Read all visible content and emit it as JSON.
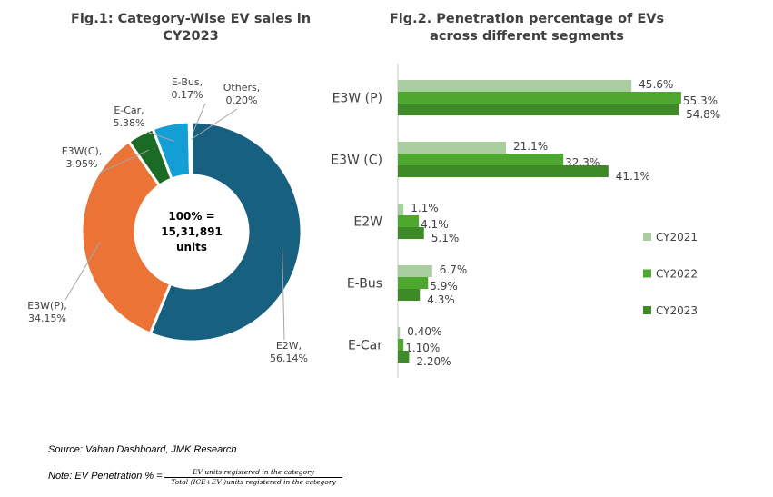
{
  "chart_data": [
    {
      "type": "pie",
      "title": "Fig.1: Category-Wise EV sales in CY2023",
      "center_label": [
        "100% =",
        "15,31,891",
        "units"
      ],
      "slices": [
        {
          "label": "E2W",
          "value": 56.14,
          "display": "56.14%",
          "color": "#17607f"
        },
        {
          "label": "E3W(P)",
          "value": 34.15,
          "display": "34.15%",
          "color": "#ea7335"
        },
        {
          "label": "E3W(C)",
          "value": 3.95,
          "display": "3.95%",
          "color": "#1b6b26"
        },
        {
          "label": "E-Car",
          "value": 5.38,
          "display": "5.38%",
          "color": "#139fd6"
        },
        {
          "label": "E-Bus",
          "value": 0.17,
          "display": "0.17%",
          "color": "#7f7f7f"
        },
        {
          "label": "Others",
          "value": 0.2,
          "display": "0.20%",
          "color": "#bfbfbf"
        }
      ]
    },
    {
      "type": "bar",
      "orientation": "horizontal",
      "title": "Fig.2. Penetration percentage of EVs across different segments",
      "categories": [
        "E3W (P)",
        "E3W (C)",
        "E2W",
        "E-Bus",
        "E-Car"
      ],
      "series": [
        {
          "name": "CY2021",
          "values": [
            45.6,
            21.1,
            1.1,
            6.7,
            0.4
          ],
          "labels": [
            "45.6%",
            "21.1%",
            "1.1%",
            "6.7%",
            "0.40%"
          ],
          "color": "#a9cd9f"
        },
        {
          "name": "CY2022",
          "values": [
            55.3,
            32.3,
            4.1,
            5.9,
            1.1
          ],
          "labels": [
            "55.3%",
            "32.3%",
            "4.1%",
            "5.9%",
            "1.10%"
          ],
          "color": "#4ea72e"
        },
        {
          "name": "CY2023",
          "values": [
            54.8,
            41.1,
            5.1,
            4.3,
            2.2
          ],
          "labels": [
            "54.8%",
            "41.1%",
            "5.1%",
            "4.3%",
            "2.20%"
          ],
          "color": "#3d8a26"
        }
      ],
      "legend": "right",
      "grid": false
    }
  ],
  "footer": {
    "source": "Source: Vahan Dashboard, JMK Research",
    "note": "Note: EV Penetration % =",
    "numerator": "EV units registered in the category",
    "denominator": "Total (ICE+EV )units registered in the category"
  }
}
